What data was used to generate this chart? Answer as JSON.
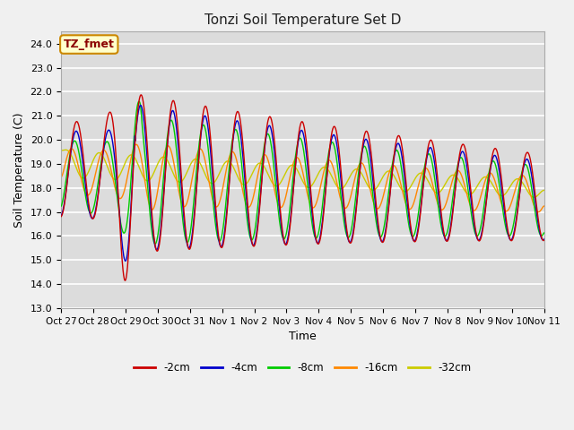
{
  "title": "Tonzi Soil Temperature Set D",
  "xlabel": "Time",
  "ylabel": "Soil Temperature (C)",
  "ylim": [
    13.0,
    24.5
  ],
  "yticks": [
    13.0,
    14.0,
    15.0,
    16.0,
    17.0,
    18.0,
    19.0,
    20.0,
    21.0,
    22.0,
    23.0,
    24.0
  ],
  "x_labels": [
    "Oct 27",
    "Oct 28",
    "Oct 29",
    "Oct 30",
    "Oct 31",
    "Nov 1",
    "Nov 2",
    "Nov 3",
    "Nov 4",
    "Nov 5",
    "Nov 6",
    "Nov 7",
    "Nov 8",
    "Nov 9",
    "Nov 10",
    "Nov 11"
  ],
  "series_colors": [
    "#cc0000",
    "#0000cc",
    "#00cc00",
    "#ff8800",
    "#cccc00"
  ],
  "series_labels": [
    "-2cm",
    "-4cm",
    "-8cm",
    "-16cm",
    "-32cm"
  ],
  "annotation_text": "TZ_fmet",
  "annotation_bg": "#ffffcc",
  "annotation_border": "#cc8800",
  "plot_bg_color": "#dcdcdc",
  "fig_bg_color": "#f0f0f0",
  "grid_color": "#ffffff",
  "n_points": 1500
}
